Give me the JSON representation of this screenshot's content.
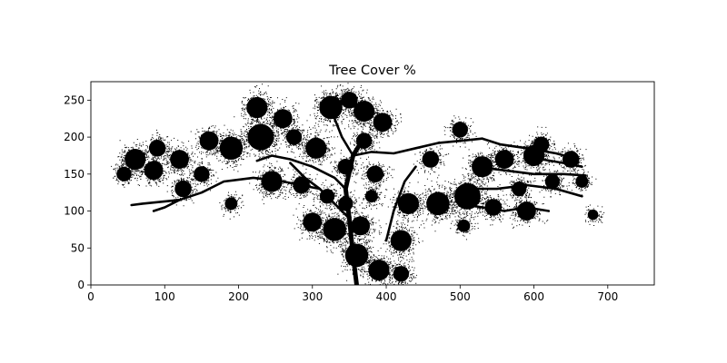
{
  "chart_data": {
    "type": "heatmap",
    "title": "Tree Cover %",
    "xlabel": "",
    "ylabel": "",
    "xlim": [
      0,
      763
    ],
    "ylim": [
      0,
      275
    ],
    "x_ticks": [
      0,
      100,
      200,
      300,
      400,
      500,
      600,
      700
    ],
    "y_ticks": [
      0,
      50,
      100,
      150,
      200,
      250
    ],
    "grid": false,
    "colors": {
      "cover": "#000000",
      "background": "#ffffff"
    },
    "canopy_clusters": [
      {
        "x": 45,
        "y": 150,
        "r": 14
      },
      {
        "x": 60,
        "y": 170,
        "r": 20
      },
      {
        "x": 90,
        "y": 185,
        "r": 16
      },
      {
        "x": 85,
        "y": 155,
        "r": 18
      },
      {
        "x": 120,
        "y": 170,
        "r": 18
      },
      {
        "x": 125,
        "y": 130,
        "r": 16
      },
      {
        "x": 160,
        "y": 195,
        "r": 18
      },
      {
        "x": 150,
        "y": 150,
        "r": 15
      },
      {
        "x": 190,
        "y": 185,
        "r": 22
      },
      {
        "x": 190,
        "y": 110,
        "r": 12
      },
      {
        "x": 225,
        "y": 240,
        "r": 20
      },
      {
        "x": 230,
        "y": 200,
        "r": 25
      },
      {
        "x": 260,
        "y": 225,
        "r": 18
      },
      {
        "x": 245,
        "y": 140,
        "r": 20
      },
      {
        "x": 285,
        "y": 135,
        "r": 16
      },
      {
        "x": 275,
        "y": 200,
        "r": 15
      },
      {
        "x": 305,
        "y": 185,
        "r": 20
      },
      {
        "x": 325,
        "y": 240,
        "r": 22
      },
      {
        "x": 350,
        "y": 250,
        "r": 16
      },
      {
        "x": 370,
        "y": 235,
        "r": 20
      },
      {
        "x": 395,
        "y": 220,
        "r": 18
      },
      {
        "x": 370,
        "y": 195,
        "r": 15
      },
      {
        "x": 385,
        "y": 150,
        "r": 16
      },
      {
        "x": 345,
        "y": 160,
        "r": 15
      },
      {
        "x": 320,
        "y": 120,
        "r": 14
      },
      {
        "x": 300,
        "y": 85,
        "r": 18
      },
      {
        "x": 330,
        "y": 75,
        "r": 22
      },
      {
        "x": 365,
        "y": 80,
        "r": 18
      },
      {
        "x": 360,
        "y": 40,
        "r": 22
      },
      {
        "x": 390,
        "y": 20,
        "r": 20
      },
      {
        "x": 420,
        "y": 15,
        "r": 15
      },
      {
        "x": 420,
        "y": 60,
        "r": 20
      },
      {
        "x": 430,
        "y": 110,
        "r": 20
      },
      {
        "x": 460,
        "y": 170,
        "r": 16
      },
      {
        "x": 470,
        "y": 110,
        "r": 22
      },
      {
        "x": 500,
        "y": 210,
        "r": 15
      },
      {
        "x": 510,
        "y": 120,
        "r": 25
      },
      {
        "x": 530,
        "y": 160,
        "r": 20
      },
      {
        "x": 545,
        "y": 105,
        "r": 16
      },
      {
        "x": 560,
        "y": 170,
        "r": 18
      },
      {
        "x": 580,
        "y": 130,
        "r": 14
      },
      {
        "x": 590,
        "y": 100,
        "r": 18
      },
      {
        "x": 600,
        "y": 175,
        "r": 20
      },
      {
        "x": 610,
        "y": 190,
        "r": 15
      },
      {
        "x": 625,
        "y": 140,
        "r": 14
      },
      {
        "x": 650,
        "y": 170,
        "r": 16
      },
      {
        "x": 665,
        "y": 140,
        "r": 12
      },
      {
        "x": 680,
        "y": 95,
        "r": 10
      },
      {
        "x": 505,
        "y": 80,
        "r": 12
      },
      {
        "x": 345,
        "y": 110,
        "r": 14
      },
      {
        "x": 380,
        "y": 120,
        "r": 12
      }
    ],
    "branches": [
      [
        [
          360,
          0
        ],
        [
          355,
          40
        ],
        [
          350,
          90
        ],
        [
          345,
          130
        ],
        [
          355,
          175
        ],
        [
          370,
          200
        ]
      ],
      [
        [
          350,
          90
        ],
        [
          330,
          110
        ],
        [
          310,
          130
        ],
        [
          290,
          145
        ],
        [
          270,
          165
        ]
      ],
      [
        [
          345,
          130
        ],
        [
          330,
          145
        ],
        [
          300,
          160
        ],
        [
          270,
          170
        ],
        [
          245,
          175
        ],
        [
          225,
          168
        ]
      ],
      [
        [
          355,
          175
        ],
        [
          340,
          200
        ],
        [
          330,
          225
        ],
        [
          340,
          250
        ]
      ],
      [
        [
          355,
          175
        ],
        [
          380,
          180
        ],
        [
          410,
          178
        ],
        [
          440,
          185
        ],
        [
          470,
          192
        ],
        [
          500,
          195
        ],
        [
          530,
          198
        ]
      ],
      [
        [
          400,
          60
        ],
        [
          410,
          100
        ],
        [
          425,
          140
        ],
        [
          440,
          160
        ]
      ],
      [
        [
          310,
          130
        ],
        [
          260,
          140
        ],
        [
          220,
          145
        ],
        [
          180,
          140
        ],
        [
          150,
          125
        ],
        [
          120,
          115
        ],
        [
          70,
          110
        ],
        [
          55,
          108
        ]
      ],
      [
        [
          120,
          115
        ],
        [
          100,
          105
        ],
        [
          85,
          100
        ]
      ],
      [
        [
          530,
          198
        ],
        [
          555,
          190
        ],
        [
          590,
          185
        ],
        [
          630,
          178
        ],
        [
          660,
          170
        ]
      ],
      [
        [
          520,
          160
        ],
        [
          560,
          155
        ],
        [
          600,
          150
        ],
        [
          640,
          150
        ],
        [
          670,
          148
        ]
      ],
      [
        [
          510,
          130
        ],
        [
          550,
          130
        ],
        [
          590,
          135
        ],
        [
          630,
          130
        ],
        [
          665,
          120
        ]
      ],
      [
        [
          500,
          110
        ],
        [
          530,
          105
        ],
        [
          560,
          100
        ],
        [
          590,
          105
        ],
        [
          620,
          100
        ]
      ],
      [
        [
          610,
          170
        ],
        [
          640,
          165
        ],
        [
          665,
          160
        ]
      ]
    ]
  }
}
